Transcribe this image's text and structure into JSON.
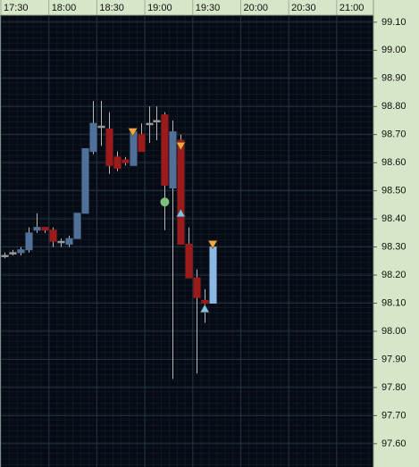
{
  "chart_data": {
    "type": "candlestick",
    "x": [
      "17:30",
      "17:35",
      "17:40",
      "17:45",
      "17:50",
      "17:55",
      "18:00",
      "18:05",
      "18:10",
      "18:15",
      "18:20",
      "18:25",
      "18:30",
      "18:35",
      "18:40",
      "18:45",
      "18:50",
      "18:55",
      "19:00",
      "19:05",
      "19:10",
      "19:15",
      "19:20",
      "19:25",
      "19:30",
      "19:35",
      "19:40"
    ],
    "open": [
      98.27,
      98.28,
      98.28,
      98.29,
      98.36,
      98.37,
      98.36,
      98.32,
      98.31,
      98.33,
      98.42,
      98.64,
      98.73,
      98.72,
      98.62,
      98.61,
      98.59,
      98.7,
      98.74,
      98.75,
      98.77,
      98.51,
      98.68,
      98.31,
      98.19,
      98.11,
      98.1
    ],
    "high": [
      98.28,
      98.29,
      98.3,
      98.37,
      98.42,
      98.37,
      98.37,
      98.33,
      98.34,
      98.42,
      98.65,
      98.82,
      98.82,
      98.78,
      98.64,
      98.62,
      98.72,
      98.74,
      98.8,
      98.8,
      98.78,
      98.75,
      98.7,
      98.37,
      98.22,
      98.15,
      98.31
    ],
    "low": [
      98.26,
      98.27,
      98.27,
      98.28,
      98.35,
      98.35,
      98.3,
      98.3,
      98.3,
      98.33,
      98.42,
      98.63,
      98.66,
      98.56,
      98.57,
      98.59,
      98.59,
      98.64,
      98.67,
      98.68,
      98.36,
      97.83,
      98.31,
      98.19,
      97.85,
      98.03,
      98.1
    ],
    "close": [
      98.27,
      98.28,
      98.29,
      98.35,
      98.37,
      98.36,
      98.32,
      98.32,
      98.33,
      98.42,
      98.65,
      98.74,
      98.73,
      98.59,
      98.58,
      98.6,
      98.71,
      98.64,
      98.74,
      98.75,
      98.52,
      98.71,
      98.31,
      98.19,
      98.12,
      98.1,
      98.3
    ],
    "up_color": "#50709a",
    "down_color": "#9c1a1a",
    "flat_color": "#9a9a9a",
    "last_color": "#8cb8e6",
    "signals": [
      {
        "x": "18:50",
        "value": 98.71,
        "shape": "down",
        "color": "#f4a640"
      },
      {
        "x": "19:20",
        "value": 98.66,
        "shape": "down",
        "color": "#f4a640"
      },
      {
        "x": "19:20",
        "value": 98.42,
        "shape": "up",
        "color": "#7cc4ec"
      },
      {
        "x": "19:10",
        "value": 98.46,
        "shape": "dot",
        "color": "#7cc07c"
      },
      {
        "x": "19:35",
        "value": 98.08,
        "shape": "up",
        "color": "#7cc4ec"
      },
      {
        "x": "19:40",
        "value": 98.31,
        "shape": "down",
        "color": "#f4a640"
      }
    ],
    "xlim": [
      "17:30",
      "21:23"
    ],
    "xticks": [
      "17:30",
      "18:00",
      "18:30",
      "19:00",
      "19:30",
      "20:00",
      "20:30",
      "21:00"
    ],
    "ylim": [
      97.517,
      99.125
    ],
    "yticks": [
      {
        "value": 99.1,
        "label": "99.10"
      },
      {
        "value": 99.0,
        "label": "99.00"
      },
      {
        "value": 98.9,
        "label": "98.90"
      },
      {
        "value": 98.8,
        "label": "98.80"
      },
      {
        "value": 98.7,
        "label": "98.70"
      },
      {
        "value": 98.6,
        "label": "98.60"
      },
      {
        "value": 98.5,
        "label": "98.50"
      },
      {
        "value": 98.4,
        "label": "98.40"
      },
      {
        "value": 98.3,
        "label": "98.30"
      },
      {
        "value": 98.2,
        "label": "98.20"
      },
      {
        "value": 98.1,
        "label": "98.10"
      },
      {
        "value": 98.0,
        "label": "98.00"
      },
      {
        "value": 97.9,
        "label": "97.90"
      },
      {
        "value": 97.8,
        "label": "97.80"
      },
      {
        "value": 97.7,
        "label": "97.70"
      },
      {
        "value": 97.6,
        "label": "97.60"
      }
    ],
    "grid": true
  }
}
